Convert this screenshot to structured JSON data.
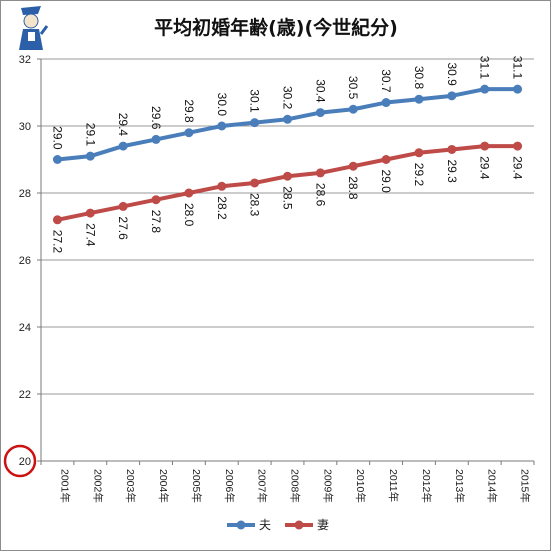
{
  "chart_data": {
    "type": "line",
    "title": "平均初婚年齢(歳)(今世紀分)",
    "categories": [
      "2001年",
      "2002年",
      "2003年",
      "2004年",
      "2005年",
      "2006年",
      "2007年",
      "2008年",
      "2009年",
      "2010年",
      "2011年",
      "2012年",
      "2013年",
      "2014年",
      "2015年"
    ],
    "series": [
      {
        "name": "夫",
        "color": "#4a7ebb",
        "values": [
          29.0,
          29.1,
          29.4,
          29.6,
          29.8,
          30.0,
          30.1,
          30.2,
          30.4,
          30.5,
          30.7,
          30.8,
          30.9,
          31.1,
          31.1
        ]
      },
      {
        "name": "妻",
        "color": "#be4b48",
        "values": [
          27.2,
          27.4,
          27.6,
          27.8,
          28.0,
          28.2,
          28.3,
          28.5,
          28.6,
          28.8,
          29.0,
          29.2,
          29.3,
          29.4,
          29.4
        ]
      }
    ],
    "ylim": [
      20,
      32
    ],
    "yticks": [
      20,
      22,
      24,
      26,
      28,
      30,
      32
    ],
    "xlabel": "",
    "ylabel": "",
    "grid": "horizontal",
    "legend": "bottom",
    "annotation": {
      "circled_tick": "20",
      "circle_color": "#cc1111"
    }
  },
  "logo": {
    "icon": "mascot-icon"
  }
}
